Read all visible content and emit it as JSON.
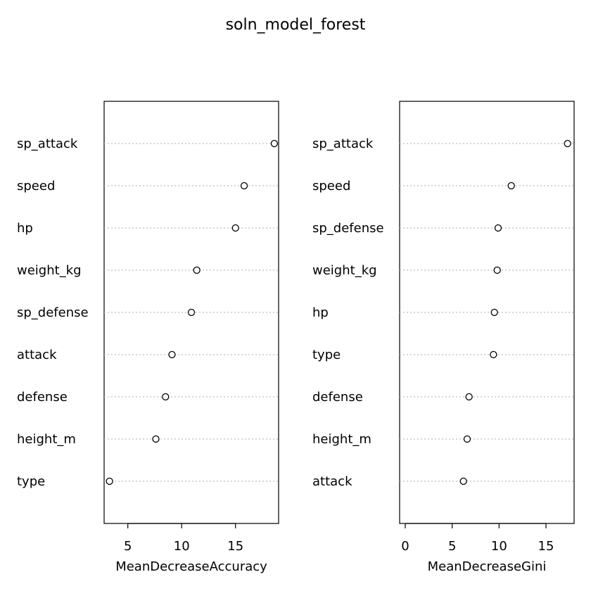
{
  "chart_data": {
    "type": "scatter",
    "title": "soln_model_forest",
    "panels": [
      {
        "xlabel": "MeanDecreaseAccuracy",
        "xlim": [
          2.8,
          19.0
        ],
        "xticks": [
          5,
          10,
          15
        ],
        "categories": [
          "sp_attack",
          "speed",
          "hp",
          "weight_kg",
          "sp_defense",
          "attack",
          "defense",
          "height_m",
          "type"
        ],
        "values": [
          18.6,
          15.8,
          15.0,
          11.4,
          10.9,
          9.1,
          8.5,
          7.6,
          3.3
        ]
      },
      {
        "xlabel": "MeanDecreaseGini",
        "xlim": [
          -0.6,
          18.0
        ],
        "xticks": [
          0,
          5,
          10,
          15
        ],
        "categories": [
          "sp_attack",
          "speed",
          "sp_defense",
          "weight_kg",
          "hp",
          "type",
          "defense",
          "height_m",
          "attack"
        ],
        "values": [
          17.3,
          11.3,
          9.9,
          9.8,
          9.5,
          9.4,
          6.8,
          6.6,
          6.2
        ]
      }
    ]
  }
}
